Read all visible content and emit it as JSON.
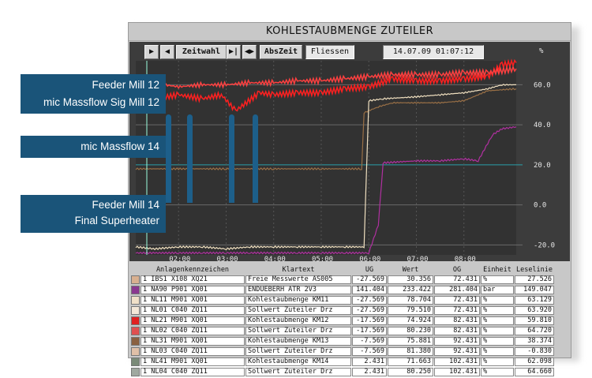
{
  "window": {
    "title": "KOHLESTAUBMENGE ZUTEILER"
  },
  "toolbar": {
    "first_label": "▶",
    "prev_label": "◀",
    "mode_label": "Zeitwahl",
    "next_label": "▶|",
    "zoom_label": "◀▶",
    "abs_label": "AbsZeit",
    "flow_label": "Fliessen",
    "datetime": "14.07.09 01:07:12",
    "unit_label": "%"
  },
  "callouts": [
    {
      "lines": [
        "Feeder Mill 12",
        "mic Massflow Sig Mill 12"
      ]
    },
    {
      "lines": [
        "mic Massflow 14"
      ]
    },
    {
      "lines": [
        "Feeder Mill 14",
        "Final Superheater"
      ]
    }
  ],
  "chart_data": {
    "type": "line",
    "title": "KOHLESTAUBMENGE ZUTEILER",
    "ylabel": "%",
    "ylim": [
      -25,
      72
    ],
    "yticks": [
      "60.0",
      "40.0",
      "20.0",
      "0.0",
      "-20.0"
    ],
    "ytick_values": [
      60,
      40,
      20,
      0,
      -20
    ],
    "xticks": [
      "02:00",
      "03:00",
      "04:00",
      "05:00",
      "06:00",
      "07:00",
      "08:00"
    ],
    "xtick_values": [
      2,
      3,
      4,
      5,
      6,
      7,
      8
    ],
    "xlim": [
      1.1,
      9.1
    ],
    "series": [
      {
        "name": "Kohlestaubmenge KM12",
        "color": "#ff2020",
        "x": [
          1.1,
          1.5,
          2.0,
          2.5,
          2.9,
          3.2,
          3.7,
          4.0,
          4.5,
          5.0,
          5.5,
          6.0,
          6.5,
          7.0,
          7.5,
          8.0,
          8.5,
          8.8,
          9.1
        ],
        "y": [
          54,
          53,
          55,
          53,
          55,
          47,
          56,
          55,
          56,
          56,
          58,
          59,
          63,
          62,
          62,
          63,
          64,
          70,
          71
        ]
      },
      {
        "name": "Sollwert Zuteiler Drz",
        "color": "#ff4040",
        "x": [
          1.1,
          1.5,
          1.7,
          2.0,
          2.5,
          3.0,
          3.5,
          4.0,
          4.5,
          5.0,
          5.5,
          6.0,
          6.5,
          7.0,
          7.5,
          8.0,
          8.5,
          9.1
        ],
        "y": [
          58,
          57,
          60,
          59,
          60,
          60,
          61,
          61,
          62,
          62,
          63,
          64,
          65,
          65,
          65,
          66,
          66,
          68
        ]
      },
      {
        "name": "Kohlestaubmenge KM13",
        "color": "#9a7046",
        "x": [
          1.1,
          2.0,
          3.0,
          4.0,
          5.0,
          5.85,
          5.9,
          6.2,
          6.5,
          7.0,
          7.5,
          8.0,
          8.5,
          9.1
        ],
        "y": [
          18,
          18,
          18,
          18,
          18,
          18,
          46,
          49,
          51,
          51,
          51,
          52,
          57,
          58
        ]
      },
      {
        "name": "Kohlestaubmenge KM11",
        "color": "#f0e0c0",
        "x": [
          1.1,
          1.5,
          2.0,
          2.5,
          3.0,
          3.5,
          4.0,
          4.5,
          5.0,
          5.5,
          5.9,
          6.0,
          6.3,
          7.0,
          7.5,
          8.0,
          8.5,
          8.8,
          9.1
        ],
        "y": [
          -21,
          -22,
          -21,
          -21,
          -22,
          -21,
          -21,
          -21,
          -21,
          -21,
          -21,
          52,
          53,
          54,
          55,
          56,
          58,
          60,
          60
        ]
      },
      {
        "name": "Sollwert Zuteiler Drz KM14",
        "color": "#b030a0",
        "x": [
          1.1,
          1.5,
          2.0,
          2.5,
          3.0,
          3.5,
          4.0,
          4.5,
          5.0,
          5.5,
          6.0,
          6.2,
          6.3,
          7.0,
          7.5,
          8.0,
          8.3,
          8.6,
          8.8,
          9.1
        ],
        "y": [
          -24,
          -24,
          -24,
          -24,
          -24,
          -24,
          -24,
          -24,
          -24,
          -24,
          -24,
          -10,
          21,
          22,
          22,
          23,
          22,
          35,
          38,
          39
        ]
      }
    ]
  },
  "table": {
    "headers": [
      "Anlagenkennzeichen",
      "Klartext",
      "UG",
      "Wert",
      "OG",
      "Einheit",
      "Leselinie"
    ],
    "rows": [
      {
        "color": "#d8b090",
        "num": "1",
        "code": "IBS1 X108 XQ21",
        "text": "Freie Messwerte AS005",
        "ug": "-27.569",
        "wert": "30.356",
        "og": "72.431",
        "unit": "%",
        "lese": "27.526"
      },
      {
        "color": "#8a3890",
        "num": "1",
        "code": "NA90 P901 XQ01",
        "text": "ENDUEBERH ATR 2V3",
        "ug": "141.404",
        "wert": "233.422",
        "og": "281.404",
        "unit": "bar",
        "lese": "149.047"
      },
      {
        "color": "#f0e0c8",
        "num": "1",
        "code": "NL11 M901 XQ01",
        "text": "Kohlestaubmenge KM11",
        "ug": "-27.569",
        "wert": "78.704",
        "og": "72.431",
        "unit": "%",
        "lese": "63.129"
      },
      {
        "color": "#f4e8d8",
        "num": "1",
        "code": "NL01 C040 ZQ11",
        "text": "Sollwert Zuteiler Drz",
        "ug": "-27.569",
        "wert": "79.510",
        "og": "72.431",
        "unit": "%",
        "lese": "63.920"
      },
      {
        "color": "#e02020",
        "num": "1",
        "code": "NL21 M901 XQ01",
        "text": "Kohlestaubmenge KM12",
        "ug": "-17.569",
        "wert": "74.924",
        "og": "82.431",
        "unit": "%",
        "lese": "59.810"
      },
      {
        "color": "#e05050",
        "num": "1",
        "code": "NL02 C040 ZQ11",
        "text": "Sollwert Zuteiler Drz",
        "ug": "-17.569",
        "wert": "80.230",
        "og": "82.431",
        "unit": "%",
        "lese": "64.720"
      },
      {
        "color": "#8a6040",
        "num": "1",
        "code": "NL31 M901 XQ01",
        "text": "Kohlestaubmenge KM13",
        "ug": "-7.569",
        "wert": "75.881",
        "og": "92.431",
        "unit": "%",
        "lese": "38.374"
      },
      {
        "color": "#e0c0a8",
        "num": "1",
        "code": "NL03 C040 ZQ11",
        "text": "Sollwert Zuteiler Drz",
        "ug": "-7.569",
        "wert": "81.380",
        "og": "92.431",
        "unit": "%",
        "lese": "-0.830"
      },
      {
        "color": "#7a8a78",
        "num": "1",
        "code": "NL41 M901 XQ01",
        "text": "Kohlestaubmenge KM14",
        "ug": "2.431",
        "wert": "71.663",
        "og": "102.431",
        "unit": "%",
        "lese": "62.098"
      },
      {
        "color": "#a0a8a0",
        "num": "1",
        "code": "NL04 C040 ZQ11",
        "text": "Sollwert Zuteiler Drz",
        "ug": "2.431",
        "wert": "80.250",
        "og": "102.431",
        "unit": "%",
        "lese": "64.660"
      }
    ]
  }
}
